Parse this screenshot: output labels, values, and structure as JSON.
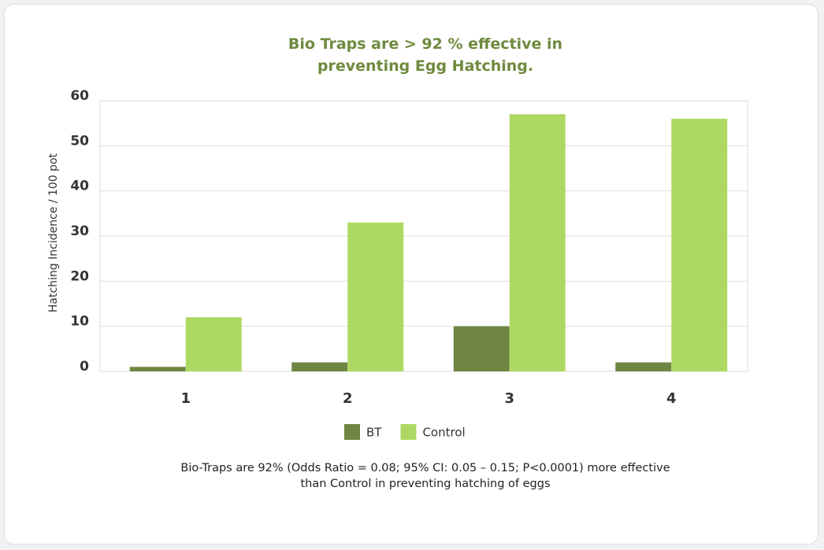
{
  "chart_data": {
    "type": "bar",
    "title": "Bio Traps are > 92 % effective in preventing Egg Hatching.",
    "y_label": "Hatching Incidence / 100 pot",
    "categories": [
      "1",
      "2",
      "3",
      "4"
    ],
    "series": [
      {
        "name": "BT",
        "color": "#6e8544",
        "values": [
          1,
          2,
          10,
          2
        ]
      },
      {
        "name": "Control",
        "color": "#add963",
        "values": [
          12,
          33,
          57,
          56
        ]
      }
    ],
    "ylim": [
      0,
      60
    ],
    "yticks": [
      0,
      10,
      20,
      30,
      40,
      50,
      60
    ],
    "grid": true,
    "legend": "bottom",
    "note": "Bio-Traps are 92% (Odds Ratio = 0.08; 95% CI: 0.05 – 0.15; P<0.0001) more effective than Control in preventing hatching of eggs"
  }
}
